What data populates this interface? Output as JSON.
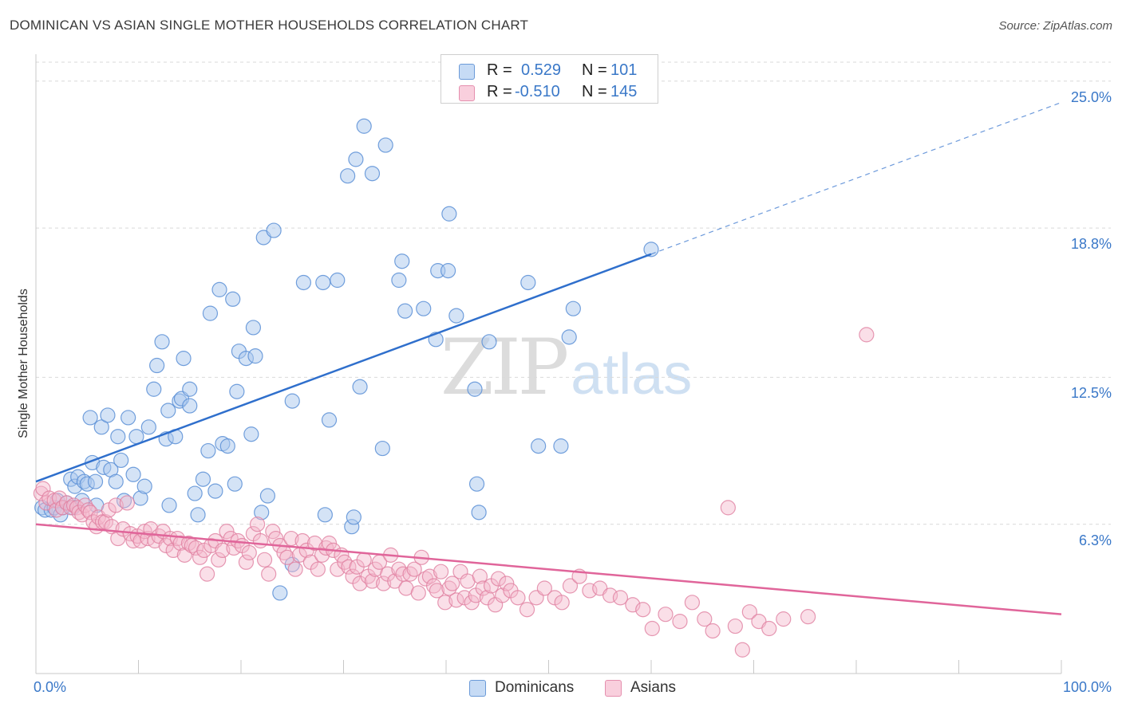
{
  "title": "DOMINICAN VS ASIAN SINGLE MOTHER HOUSEHOLDS CORRELATION CHART",
  "source": "Source: ZipAtlas.com",
  "watermark": {
    "zip": "ZIP",
    "atlas": "atlas"
  },
  "legend_top": {
    "dominicans": {
      "r_label": "R =",
      "r_value": "0.529",
      "n_label": "N =",
      "n_value": "101"
    },
    "asians": {
      "r_label": "R =",
      "r_value": "-0.510",
      "n_label": "N =",
      "n_value": "145"
    }
  },
  "legend_bottom": {
    "dominicans": "Dominicans",
    "asians": "Asians"
  },
  "colors": {
    "dominicans_fill": "#a9c8ee",
    "dominicans_stroke": "#5b8fd6",
    "dominicans_line": "#2f6fcc",
    "asians_fill": "#f5b9cc",
    "asians_stroke": "#e07fa0",
    "asians_line": "#e0659a",
    "grid": "#d9d9d9",
    "axis_label": "#3a78c8"
  },
  "chart_data": {
    "type": "scatter",
    "title": "DOMINICAN VS ASIAN SINGLE MOTHER HOUSEHOLDS CORRELATION CHART",
    "xlabel": "",
    "ylabel": "Single Mother Households",
    "xlim": [
      0,
      100
    ],
    "ylim": [
      0,
      25.8
    ],
    "x_tick_labels": [
      "0.0%",
      "100.0%"
    ],
    "y_ticks": [
      6.3,
      12.5,
      18.8,
      25.0
    ],
    "y_tick_labels": [
      "6.3%",
      "12.5%",
      "18.8%",
      "25.0%"
    ],
    "grid": true,
    "legend_position": "top-center",
    "series": [
      {
        "name": "Dominicans",
        "r": 0.529,
        "n": 101,
        "trend": {
          "x0": 0,
          "y0": 8.1,
          "x1": 60,
          "y1": 17.7,
          "dash_to_x": 100,
          "dash_to_y": 24.1
        },
        "points": [
          [
            0.6,
            7.0
          ],
          [
            0.9,
            6.9
          ],
          [
            1.5,
            6.9
          ],
          [
            1.8,
            7.0
          ],
          [
            2.1,
            7.3
          ],
          [
            2.4,
            6.7
          ],
          [
            2.6,
            7.0
          ],
          [
            3.0,
            7.2
          ],
          [
            3.4,
            8.2
          ],
          [
            3.6,
            7.0
          ],
          [
            3.8,
            7.9
          ],
          [
            4.1,
            8.3
          ],
          [
            4.5,
            7.3
          ],
          [
            4.7,
            8.1
          ],
          [
            5.0,
            8.0
          ],
          [
            5.3,
            10.8
          ],
          [
            5.5,
            8.9
          ],
          [
            5.8,
            8.1
          ],
          [
            5.9,
            7.1
          ],
          [
            6.4,
            10.4
          ],
          [
            6.6,
            8.7
          ],
          [
            7.0,
            10.9
          ],
          [
            7.3,
            8.6
          ],
          [
            7.8,
            8.1
          ],
          [
            8.0,
            10.0
          ],
          [
            8.3,
            9.0
          ],
          [
            8.6,
            7.3
          ],
          [
            9.0,
            10.8
          ],
          [
            9.5,
            8.4
          ],
          [
            9.8,
            10.0
          ],
          [
            10.2,
            7.4
          ],
          [
            10.6,
            7.9
          ],
          [
            11.0,
            10.4
          ],
          [
            11.5,
            12.0
          ],
          [
            11.8,
            13.0
          ],
          [
            12.3,
            14.0
          ],
          [
            12.7,
            9.9
          ],
          [
            12.9,
            11.1
          ],
          [
            13.0,
            7.1
          ],
          [
            13.6,
            10.0
          ],
          [
            14.0,
            11.5
          ],
          [
            14.2,
            11.6
          ],
          [
            14.4,
            13.3
          ],
          [
            15.0,
            12.0
          ],
          [
            15.0,
            11.3
          ],
          [
            15.5,
            7.6
          ],
          [
            15.8,
            6.7
          ],
          [
            16.3,
            8.2
          ],
          [
            16.8,
            9.4
          ],
          [
            17.0,
            15.2
          ],
          [
            17.5,
            7.7
          ],
          [
            17.9,
            16.2
          ],
          [
            18.2,
            9.7
          ],
          [
            18.7,
            9.6
          ],
          [
            19.2,
            15.8
          ],
          [
            19.4,
            8.0
          ],
          [
            19.6,
            11.9
          ],
          [
            19.8,
            13.6
          ],
          [
            20.5,
            13.3
          ],
          [
            21.0,
            10.1
          ],
          [
            21.2,
            14.6
          ],
          [
            21.4,
            13.4
          ],
          [
            22.0,
            6.8
          ],
          [
            22.2,
            18.4
          ],
          [
            22.6,
            7.5
          ],
          [
            23.2,
            18.7
          ],
          [
            23.8,
            3.4
          ],
          [
            25.0,
            4.6
          ],
          [
            25.0,
            11.5
          ],
          [
            26.1,
            16.5
          ],
          [
            28.0,
            16.5
          ],
          [
            28.2,
            6.7
          ],
          [
            28.6,
            10.7
          ],
          [
            29.4,
            16.6
          ],
          [
            30.4,
            21.0
          ],
          [
            30.8,
            6.2
          ],
          [
            31.0,
            6.6
          ],
          [
            31.2,
            21.7
          ],
          [
            31.6,
            12.1
          ],
          [
            32.0,
            23.1
          ],
          [
            32.8,
            21.1
          ],
          [
            33.8,
            9.5
          ],
          [
            34.1,
            22.3
          ],
          [
            35.4,
            16.6
          ],
          [
            35.7,
            17.4
          ],
          [
            36.0,
            15.3
          ],
          [
            37.8,
            15.4
          ],
          [
            39.0,
            14.1
          ],
          [
            39.2,
            17.0
          ],
          [
            40.2,
            17.0
          ],
          [
            40.3,
            19.4
          ],
          [
            41.0,
            15.1
          ],
          [
            42.8,
            12.0
          ],
          [
            43.0,
            8.0
          ],
          [
            43.2,
            6.8
          ],
          [
            44.2,
            14.0
          ],
          [
            48.0,
            16.5
          ],
          [
            49.0,
            9.6
          ],
          [
            51.2,
            9.6
          ],
          [
            52.0,
            14.2
          ],
          [
            52.4,
            15.4
          ],
          [
            60.0,
            17.9
          ]
        ]
      },
      {
        "name": "Asians",
        "r": -0.51,
        "n": 145,
        "trend": {
          "x0": 0,
          "y0": 6.3,
          "x1": 100,
          "y1": 2.5
        },
        "points": [
          [
            0.5,
            7.6
          ],
          [
            0.7,
            7.8
          ],
          [
            1.0,
            7.2
          ],
          [
            1.3,
            7.4
          ],
          [
            1.8,
            7.3
          ],
          [
            2.0,
            6.9
          ],
          [
            2.3,
            7.4
          ],
          [
            2.6,
            7.0
          ],
          [
            3.0,
            7.2
          ],
          [
            3.4,
            7.0
          ],
          [
            3.7,
            7.1
          ],
          [
            4.0,
            7.0
          ],
          [
            4.2,
            6.8
          ],
          [
            4.5,
            6.7
          ],
          [
            4.8,
            7.1
          ],
          [
            5.1,
            6.9
          ],
          [
            5.3,
            6.8
          ],
          [
            5.6,
            6.4
          ],
          [
            5.9,
            6.2
          ],
          [
            6.1,
            6.6
          ],
          [
            6.5,
            6.4
          ],
          [
            6.8,
            6.4
          ],
          [
            7.1,
            6.9
          ],
          [
            7.4,
            6.2
          ],
          [
            7.8,
            7.1
          ],
          [
            8.0,
            5.7
          ],
          [
            8.5,
            6.1
          ],
          [
            8.9,
            7.2
          ],
          [
            9.2,
            5.9
          ],
          [
            9.5,
            5.6
          ],
          [
            9.9,
            5.8
          ],
          [
            10.2,
            5.6
          ],
          [
            10.6,
            6.0
          ],
          [
            10.9,
            5.7
          ],
          [
            11.2,
            6.1
          ],
          [
            11.6,
            5.6
          ],
          [
            12.0,
            5.8
          ],
          [
            12.4,
            6.0
          ],
          [
            12.7,
            5.4
          ],
          [
            13.1,
            5.7
          ],
          [
            13.4,
            5.2
          ],
          [
            13.8,
            5.7
          ],
          [
            14.1,
            5.5
          ],
          [
            14.5,
            5.0
          ],
          [
            14.9,
            5.5
          ],
          [
            15.2,
            5.4
          ],
          [
            15.6,
            5.3
          ],
          [
            16.0,
            4.9
          ],
          [
            16.4,
            5.2
          ],
          [
            16.7,
            4.2
          ],
          [
            17.1,
            5.4
          ],
          [
            17.5,
            5.6
          ],
          [
            17.8,
            4.8
          ],
          [
            18.2,
            5.2
          ],
          [
            18.6,
            6.0
          ],
          [
            19.0,
            5.7
          ],
          [
            19.3,
            5.3
          ],
          [
            19.7,
            5.6
          ],
          [
            20.1,
            5.4
          ],
          [
            20.5,
            4.7
          ],
          [
            20.8,
            5.1
          ],
          [
            21.2,
            5.9
          ],
          [
            21.6,
            6.3
          ],
          [
            21.9,
            5.6
          ],
          [
            22.3,
            4.8
          ],
          [
            22.7,
            4.2
          ],
          [
            23.1,
            6.0
          ],
          [
            23.4,
            5.7
          ],
          [
            23.8,
            5.4
          ],
          [
            24.2,
            5.1
          ],
          [
            24.5,
            4.9
          ],
          [
            24.9,
            5.7
          ],
          [
            25.3,
            4.4
          ],
          [
            25.7,
            5.0
          ],
          [
            26.0,
            5.6
          ],
          [
            26.4,
            5.2
          ],
          [
            26.8,
            4.7
          ],
          [
            27.2,
            5.5
          ],
          [
            27.5,
            4.4
          ],
          [
            27.9,
            5.0
          ],
          [
            28.3,
            5.3
          ],
          [
            28.6,
            5.5
          ],
          [
            29.0,
            5.2
          ],
          [
            29.4,
            4.4
          ],
          [
            29.8,
            5.0
          ],
          [
            30.1,
            4.7
          ],
          [
            30.5,
            4.5
          ],
          [
            30.9,
            4.1
          ],
          [
            31.3,
            4.5
          ],
          [
            31.6,
            3.8
          ],
          [
            32.0,
            4.8
          ],
          [
            32.4,
            4.1
          ],
          [
            32.8,
            3.9
          ],
          [
            33.1,
            4.4
          ],
          [
            33.5,
            4.7
          ],
          [
            33.9,
            3.8
          ],
          [
            34.3,
            4.2
          ],
          [
            34.6,
            5.0
          ],
          [
            35.0,
            3.9
          ],
          [
            35.4,
            4.4
          ],
          [
            35.8,
            4.2
          ],
          [
            36.1,
            3.6
          ],
          [
            36.5,
            4.2
          ],
          [
            36.9,
            4.4
          ],
          [
            37.3,
            3.4
          ],
          [
            37.6,
            4.9
          ],
          [
            38.0,
            4.0
          ],
          [
            38.4,
            4.1
          ],
          [
            38.8,
            3.7
          ],
          [
            39.1,
            3.5
          ],
          [
            39.5,
            4.3
          ],
          [
            39.9,
            3.0
          ],
          [
            40.3,
            3.6
          ],
          [
            40.6,
            3.8
          ],
          [
            41.0,
            3.1
          ],
          [
            41.4,
            4.3
          ],
          [
            41.8,
            3.2
          ],
          [
            42.1,
            3.9
          ],
          [
            42.5,
            3.0
          ],
          [
            42.9,
            3.3
          ],
          [
            43.3,
            4.1
          ],
          [
            43.6,
            3.6
          ],
          [
            44.0,
            3.2
          ],
          [
            44.4,
            3.7
          ],
          [
            44.8,
            2.9
          ],
          [
            45.1,
            4.0
          ],
          [
            45.5,
            3.3
          ],
          [
            45.9,
            3.8
          ],
          [
            46.3,
            3.5
          ],
          [
            47.0,
            3.2
          ],
          [
            47.9,
            2.7
          ],
          [
            48.8,
            3.2
          ],
          [
            49.6,
            3.6
          ],
          [
            50.6,
            3.2
          ],
          [
            51.3,
            3.0
          ],
          [
            52.1,
            3.7
          ],
          [
            53.0,
            4.1
          ],
          [
            54.0,
            3.5
          ],
          [
            55.0,
            3.6
          ],
          [
            56.0,
            3.3
          ],
          [
            57.0,
            3.2
          ],
          [
            58.2,
            2.9
          ],
          [
            59.2,
            2.7
          ],
          [
            60.1,
            1.9
          ],
          [
            61.4,
            2.5
          ],
          [
            62.8,
            2.2
          ],
          [
            64.0,
            3.0
          ],
          [
            65.2,
            2.3
          ],
          [
            66.0,
            1.8
          ],
          [
            67.5,
            7.0
          ],
          [
            68.2,
            2.0
          ],
          [
            68.9,
            1.0
          ],
          [
            69.6,
            2.6
          ],
          [
            70.5,
            2.2
          ],
          [
            71.5,
            1.9
          ],
          [
            72.9,
            2.3
          ],
          [
            75.3,
            2.4
          ],
          [
            81.0,
            14.3
          ]
        ]
      }
    ]
  }
}
